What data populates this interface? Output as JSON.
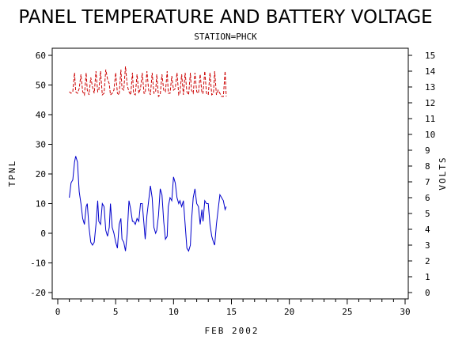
{
  "chart_data": {
    "type": "line",
    "title": "PANEL TEMPERATURE AND BATTERY VOLTAGE",
    "subtitle": "STATION=PHCK",
    "xlabel": "FEB 2002",
    "ylabel": "TPNL",
    "y2label": "VOLTS",
    "xlim": [
      0,
      30
    ],
    "ylim": [
      -20,
      60
    ],
    "y2lim": [
      0,
      15
    ],
    "x_ticks": [
      0,
      5,
      10,
      15,
      20,
      25,
      30
    ],
    "y_ticks": [
      -20,
      -10,
      0,
      10,
      20,
      30,
      40,
      50,
      60
    ],
    "y2_ticks": [
      0,
      1,
      2,
      3,
      4,
      5,
      6,
      7,
      8,
      9,
      10,
      11,
      12,
      13,
      14,
      15
    ],
    "grid": false,
    "series": [
      {
        "name": "",
        "axis": "left",
        "color": "#0000cc",
        "style": "solid",
        "x": [
          1.0,
          1.15,
          1.3,
          1.45,
          1.55,
          1.7,
          1.85,
          2.0,
          2.15,
          2.3,
          2.45,
          2.55,
          2.7,
          2.85,
          3.0,
          3.15,
          3.3,
          3.45,
          3.55,
          3.7,
          3.85,
          4.0,
          4.15,
          4.3,
          4.45,
          4.55,
          4.7,
          4.85,
          5.0,
          5.15,
          5.3,
          5.45,
          5.55,
          5.7,
          5.85,
          6.0,
          6.15,
          6.3,
          6.45,
          6.55,
          6.7,
          6.85,
          7.0,
          7.15,
          7.3,
          7.45,
          7.55,
          7.7,
          7.85,
          8.0,
          8.15,
          8.3,
          8.45,
          8.55,
          8.7,
          8.85,
          9.0,
          9.15,
          9.3,
          9.45,
          9.55,
          9.7,
          9.85,
          10.0,
          10.15,
          10.3,
          10.45,
          10.55,
          10.7,
          10.85,
          11.0,
          11.15,
          11.3,
          11.45,
          11.55,
          11.7,
          11.85,
          12.0,
          12.15,
          12.3,
          12.45,
          12.55,
          12.7,
          12.85,
          13.0,
          13.15,
          13.3,
          13.45,
          13.55,
          13.7,
          13.85,
          14.0,
          14.15,
          14.3,
          14.45,
          14.55
        ],
        "y": [
          12,
          17,
          18,
          24,
          26,
          24,
          14,
          10,
          5,
          3,
          9,
          10,
          2,
          -3,
          -4,
          -3,
          3,
          11,
          4,
          3,
          10,
          9,
          1,
          -1,
          2,
          10,
          2,
          0,
          -3,
          -5,
          3,
          5,
          -2,
          -3,
          -6,
          0,
          11,
          8,
          4,
          4,
          3,
          5,
          4,
          10,
          10,
          3,
          -2,
          6,
          11,
          16,
          12,
          2,
          0,
          1,
          6,
          15,
          13,
          4,
          -2,
          -1,
          9,
          12,
          11,
          19,
          17,
          12,
          10,
          11,
          9,
          11,
          3,
          -5,
          -6,
          -4,
          4,
          12,
          15,
          10,
          9,
          3,
          8,
          4,
          11,
          10,
          10,
          3,
          -1,
          -3,
          -4,
          3,
          8,
          13,
          12,
          11,
          8,
          9
        ]
      },
      {
        "name": "",
        "axis": "right",
        "color": "#cc0000",
        "style": "dashed",
        "x": [
          1.0,
          1.15,
          1.3,
          1.45,
          1.55,
          1.7,
          1.85,
          2.0,
          2.15,
          2.3,
          2.45,
          2.55,
          2.7,
          2.85,
          3.0,
          3.15,
          3.3,
          3.45,
          3.55,
          3.7,
          3.85,
          4.0,
          4.15,
          4.3,
          4.45,
          4.55,
          4.7,
          4.85,
          5.0,
          5.15,
          5.3,
          5.45,
          5.55,
          5.7,
          5.85,
          6.0,
          6.15,
          6.3,
          6.45,
          6.55,
          6.7,
          6.85,
          7.0,
          7.15,
          7.3,
          7.45,
          7.55,
          7.7,
          7.85,
          8.0,
          8.15,
          8.3,
          8.45,
          8.55,
          8.7,
          8.85,
          9.0,
          9.15,
          9.3,
          9.45,
          9.55,
          9.7,
          9.85,
          10.0,
          10.15,
          10.3,
          10.45,
          10.55,
          10.7,
          10.85,
          11.0,
          11.15,
          11.3,
          11.45,
          11.55,
          11.7,
          11.85,
          12.0,
          12.15,
          12.3,
          12.45,
          12.55,
          12.7,
          12.85,
          13.0,
          13.15,
          13.3,
          13.45,
          13.55,
          13.7,
          13.85,
          14.0,
          14.15,
          14.3,
          14.45,
          14.55
        ],
        "y": [
          12.7,
          12.6,
          12.7,
          13.9,
          12.7,
          12.6,
          12.9,
          13.8,
          12.7,
          12.5,
          13.9,
          12.8,
          12.5,
          13.6,
          13.0,
          12.6,
          14.0,
          12.7,
          12.8,
          14.0,
          12.5,
          12.6,
          14.1,
          13.5,
          13.2,
          12.5,
          12.6,
          12.8,
          13.9,
          12.6,
          12.5,
          14.1,
          12.9,
          12.8,
          14.3,
          13.1,
          12.7,
          12.5,
          13.9,
          12.6,
          12.5,
          13.8,
          12.6,
          12.9,
          13.9,
          12.6,
          12.6,
          14.0,
          12.8,
          12.5,
          13.9,
          12.6,
          12.7,
          13.8,
          12.4,
          12.5,
          13.8,
          12.8,
          12.7,
          14.0,
          12.6,
          12.6,
          13.7,
          12.8,
          12.9,
          13.9,
          12.5,
          12.6,
          13.8,
          12.5,
          13.9,
          12.7,
          12.5,
          13.9,
          12.8,
          12.6,
          13.9,
          12.7,
          12.6,
          13.8,
          12.6,
          12.6,
          14.0,
          12.6,
          12.5,
          13.9,
          12.5,
          12.6,
          14.0,
          12.5,
          12.8,
          12.6,
          12.4,
          12.4,
          14.0,
          12.4
        ]
      }
    ]
  }
}
